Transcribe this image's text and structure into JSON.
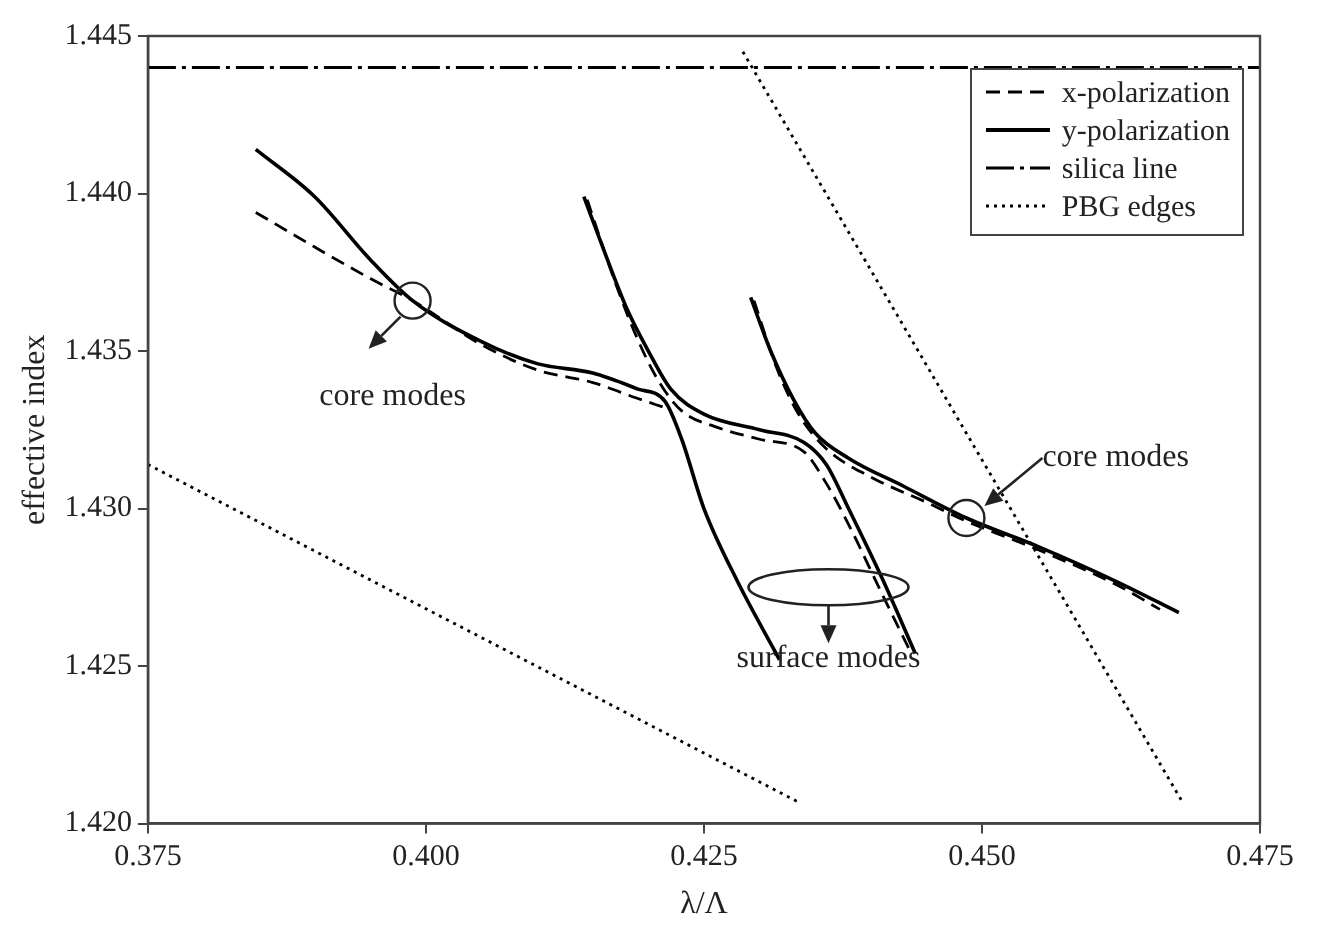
{
  "chart_data": {
    "type": "line",
    "xlabel": "λ/Λ",
    "ylabel": "effective index",
    "xlim": [
      0.375,
      0.475
    ],
    "xticks": [
      0.375,
      {
        "value": 0.4,
        "label": "0.400"
      },
      0.425,
      {
        "value": 0.45,
        "label": "0.450"
      },
      0.475
    ],
    "ylim": [
      1.42,
      1.445
    ],
    "yticks": [
      {
        "value": 1.42,
        "label": "1.420"
      },
      1.425,
      {
        "value": 1.43,
        "label": "1.430"
      },
      1.435,
      {
        "value": 1.44,
        "label": "1.440"
      },
      1.445
    ],
    "grid": false,
    "legend": "top right",
    "marker": "none",
    "series": [
      {
        "name": "x-polarization",
        "color": "#000000",
        "line_style": "dashed",
        "x": [
          0.3847,
          0.39,
          0.395,
          0.3988,
          0.405,
          0.41,
          0.415,
          0.419,
          0.4215
        ],
        "values": [
          1.4394,
          1.4383,
          1.4373,
          1.4366,
          1.4352,
          1.4344,
          1.434,
          1.4335,
          1.4332
        ]
      },
      {
        "color": "#000000",
        "line_style": "dashed",
        "x": [
          0.4145,
          0.417,
          0.419,
          0.421,
          0.423,
          0.426,
          0.43,
          0.434,
          0.436,
          0.438,
          0.441,
          0.4435
        ],
        "values": [
          1.4398,
          1.4372,
          1.4354,
          1.434,
          1.4331,
          1.4326,
          1.4322,
          1.4318,
          1.4308,
          1.4295,
          1.4273,
          1.4255
        ]
      },
      {
        "color": "#000000",
        "line_style": "dashed",
        "x": [
          0.4295,
          0.4315,
          0.4335,
          0.436,
          0.44,
          0.445,
          0.4486,
          0.455,
          0.462,
          0.466
        ],
        "values": [
          1.4366,
          1.4345,
          1.433,
          1.4319,
          1.431,
          1.4302,
          1.4296,
          1.4287,
          1.4276,
          1.4268
        ]
      },
      {
        "name": "y-polarization",
        "color": "#000000",
        "line_style": "solid",
        "x": [
          0.3847,
          0.39,
          0.395,
          0.3988,
          0.405,
          0.41,
          0.415,
          0.419,
          0.4215,
          0.423,
          0.425,
          0.428,
          0.4318
        ],
        "values": [
          1.4414,
          1.4399,
          1.4379,
          1.4366,
          1.4353,
          1.4346,
          1.4343,
          1.4338,
          1.4334,
          1.4322,
          1.43,
          1.4277,
          1.4252
        ]
      },
      {
        "color": "#000000",
        "line_style": "solid",
        "x": [
          0.4142,
          0.416,
          0.418,
          0.42,
          0.422,
          0.425,
          0.43,
          0.434,
          0.436,
          0.438,
          0.441,
          0.444
        ],
        "values": [
          1.4399,
          1.4382,
          1.4364,
          1.435,
          1.4338,
          1.433,
          1.4325,
          1.4321,
          1.4314,
          1.43,
          1.4278,
          1.4254
        ]
      },
      {
        "color": "#000000",
        "line_style": "solid",
        "x": [
          0.4292,
          0.431,
          0.433,
          0.435,
          0.438,
          0.443,
          0.4486,
          0.455,
          0.462,
          0.4677
        ],
        "values": [
          1.4367,
          1.435,
          1.4335,
          1.4324,
          1.4316,
          1.4307,
          1.4297,
          1.4288,
          1.4277,
          1.4267
        ]
      },
      {
        "name": "silica line",
        "color": "#000000",
        "line_style": "dashdot",
        "x": [
          0.375,
          0.475
        ],
        "values": [
          1.444,
          1.444
        ]
      },
      {
        "name": "PBG edges",
        "color": "#000000",
        "line_style": "dotted",
        "x": [
          0.375,
          0.4334
        ],
        "values": [
          1.4314,
          1.4207
        ]
      },
      {
        "color": "#000000",
        "line_style": "dotted",
        "x": [
          0.4285,
          0.468
        ],
        "values": [
          1.4445,
          1.4207
        ]
      }
    ],
    "annotations": [
      {
        "text": "core modes",
        "x": 0.3988,
        "y": 1.4366
      },
      {
        "text": "core modes",
        "x": 0.4486,
        "y": 1.4297
      },
      "surface modes"
    ]
  }
}
